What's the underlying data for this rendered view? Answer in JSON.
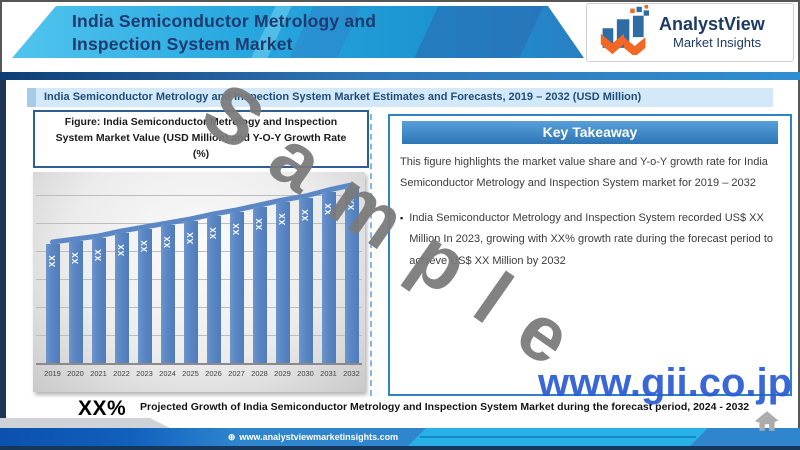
{
  "header": {
    "title_line1": "India Semiconductor Metrology and",
    "title_line2": "Inspection System Market",
    "logo": {
      "name": "AnalystView",
      "tagline": "Market Insights"
    }
  },
  "subtitle_bar": {
    "text": "India Semiconductor Metrology and Inspection System Market Estimates and Forecasts, 2019 – 2032 (USD Million)"
  },
  "figure_caption": "Figure: India Semiconductor Metrology and Inspection System Market Value (USD Million) and Y-O-Y Growth Rate (%)",
  "chart_data": {
    "type": "bar",
    "title": "India Semiconductor Metrology and Inspection System Market Value (USD Million) and Y-O-Y Growth Rate (%)",
    "categories": [
      "2019",
      "2020",
      "2021",
      "2022",
      "2023",
      "2024",
      "2025",
      "2026",
      "2027",
      "2028",
      "2029",
      "2030",
      "2031",
      "2032"
    ],
    "bar_labels": [
      "XX",
      "XX",
      "XX",
      "XX",
      "XX",
      "XX",
      "XX",
      "XX",
      "XX",
      "XX",
      "XX",
      "XX",
      "XX",
      "XX"
    ],
    "values_relative": [
      67.6,
      69.3,
      71.0,
      73.9,
      76.1,
      78.4,
      80.7,
      83.5,
      85.8,
      88.6,
      91.5,
      93.8,
      97.2,
      100
    ],
    "bar_color": "#5B87C5",
    "trend_line": true,
    "trend_line_color": "#5B87C5",
    "grid": true,
    "y_axis_labels_visible": false,
    "xlabel": "",
    "ylabel": ""
  },
  "key_takeaway": {
    "header": "Key Takeaway",
    "intro": "This figure highlights the market value share and Y-o-Y growth rate for India Semiconductor Metrology and Inspection System market for 2019 – 2032",
    "bullet_marker": "▪",
    "bullet": "India Semiconductor Metrology and Inspection System recorded US$ XX Million In 2023, growing with XX% growth rate during the forecast period to achieve US$ XX Million by 2032"
  },
  "highlight": {
    "stat": "XX%",
    "text": "Projected Growth of India Semiconductor Metrology and Inspection System Market during the forecast period, 2024 - 2032"
  },
  "footer": {
    "globe_icon": "⊕",
    "url": "www.analystviewmarketinsights.com"
  },
  "watermarks": {
    "sample": "Sample",
    "gii": "www.gii.co.jp"
  },
  "colors": {
    "accent_blue": "#2E75B6",
    "cyan": "#29A9E0",
    "bar_blue": "#5B87C5",
    "navy_text": "#1E3A6E",
    "logo_orange": "#F26724",
    "gii_blue": "#2B5CD4",
    "watermark_gray": "#7A7A7A"
  }
}
